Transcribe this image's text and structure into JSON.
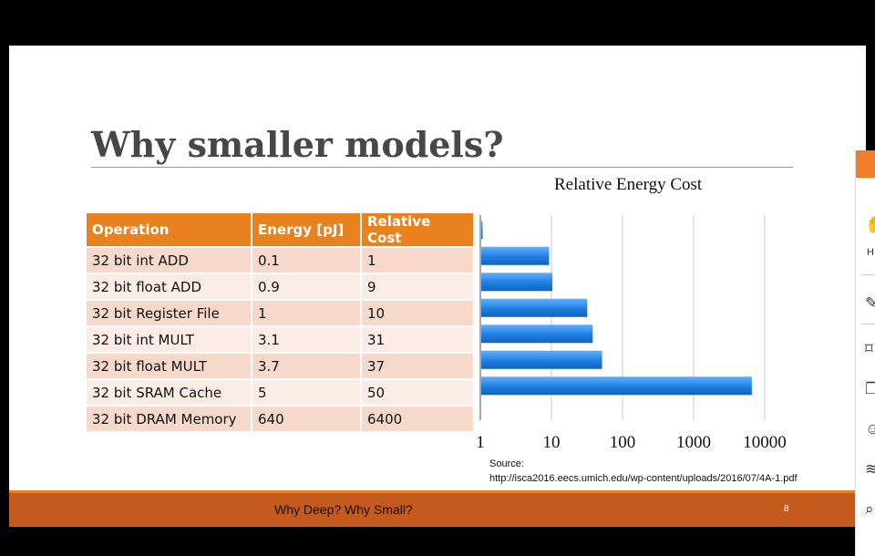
{
  "slide": {
    "title": "Why smaller models?",
    "footer_text": "Why Deep? Why Small?",
    "page_number": "8",
    "source_label": "Source:",
    "source_url": "http://isca2016.eecs.umich.edu/wp-content/uploads/2016/07/4A-1.pdf"
  },
  "table": {
    "headers": [
      "Operation",
      "Energy [pJ]",
      "Relative Cost"
    ],
    "rows": [
      [
        "32 bit int ADD",
        "0.1",
        "1"
      ],
      [
        "32 bit float ADD",
        "0.9",
        "9"
      ],
      [
        "32 bit Register File",
        "1",
        "10"
      ],
      [
        "32 bit int MULT",
        "3.1",
        "31"
      ],
      [
        "32 bit float MULT",
        "3.7",
        "37"
      ],
      [
        "32 bit SRAM Cache",
        "5",
        "50"
      ],
      [
        "32 bit DRAM Memory",
        "640",
        "6400"
      ]
    ]
  },
  "chart_data": {
    "type": "bar",
    "orientation": "horizontal",
    "title": "Relative Energy Cost",
    "categories": [
      "32 bit int ADD",
      "32 bit float ADD",
      "32 bit Register File",
      "32 bit int MULT",
      "32 bit float MULT",
      "32 bit SRAM Cache",
      "32 bit DRAM Memory"
    ],
    "values": [
      1,
      9,
      10,
      31,
      37,
      50,
      6400
    ],
    "x_scale": "log",
    "xlim": [
      1,
      10000
    ],
    "x_ticks": [
      "1",
      "10",
      "100",
      "1000",
      "10000"
    ],
    "grid": true,
    "bar_color": "#1f7fe0"
  },
  "side_panel": {
    "label": "H"
  }
}
